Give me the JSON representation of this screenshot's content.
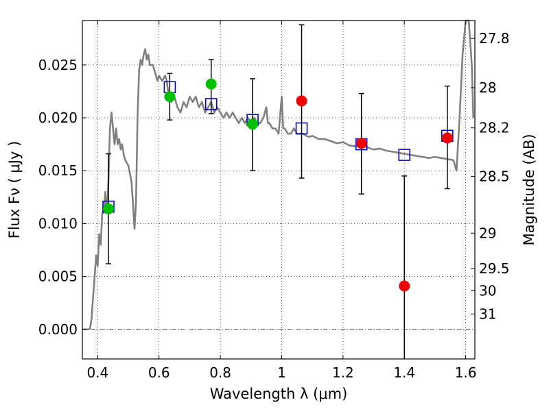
{
  "chart_data": {
    "type": "scatter",
    "xlabel": "Wavelength  λ (μm)",
    "ylabel": "Flux  Fν  ( μJy )",
    "ylabel_right": "Magnitude (AB)",
    "xlim": [
      0.35,
      1.63
    ],
    "ylim": [
      -0.0028,
      0.0292
    ],
    "grid": true,
    "legend": "none",
    "x_ticks": [
      {
        "value": 0.4,
        "label": "0.4"
      },
      {
        "value": 0.6,
        "label": "0.6"
      },
      {
        "value": 0.8,
        "label": "0.8"
      },
      {
        "value": 1.0,
        "label": "1"
      },
      {
        "value": 1.2,
        "label": "1.2"
      },
      {
        "value": 1.4,
        "label": "1.4"
      },
      {
        "value": 1.6,
        "label": "1.6"
      }
    ],
    "y_ticks": [
      {
        "value": 0.0,
        "label": "0.000"
      },
      {
        "value": 0.005,
        "label": "0.005"
      },
      {
        "value": 0.01,
        "label": "0.010"
      },
      {
        "value": 0.015,
        "label": "0.015"
      },
      {
        "value": 0.02,
        "label": "0.020"
      },
      {
        "value": 0.025,
        "label": "0.025"
      }
    ],
    "magnitude_ticks": [
      {
        "label": "27.8",
        "flux": 0.0275
      },
      {
        "label": "28",
        "flux": 0.02285
      },
      {
        "label": "28.2",
        "flux": 0.01905
      },
      {
        "label": "28.5",
        "flux": 0.01445
      },
      {
        "label": "29",
        "flux": 0.0091
      },
      {
        "label": "29.5",
        "flux": 0.00575
      },
      {
        "label": "30",
        "flux": 0.00365
      },
      {
        "label": "31",
        "flux": 0.00145
      }
    ],
    "model_spectrum": {
      "color": "#808080",
      "points": [
        [
          0.35,
          0.0
        ],
        [
          0.37,
          0.0
        ],
        [
          0.375,
          0.0001
        ],
        [
          0.38,
          0.001
        ],
        [
          0.385,
          0.003
        ],
        [
          0.39,
          0.005
        ],
        [
          0.395,
          0.007
        ],
        [
          0.4,
          0.006
        ],
        [
          0.405,
          0.009
        ],
        [
          0.41,
          0.008
        ],
        [
          0.415,
          0.011
        ],
        [
          0.42,
          0.011
        ],
        [
          0.425,
          0.013
        ],
        [
          0.43,
          0.011
        ],
        [
          0.435,
          0.014
        ],
        [
          0.44,
          0.019
        ],
        [
          0.445,
          0.0205
        ],
        [
          0.45,
          0.019
        ],
        [
          0.455,
          0.0175
        ],
        [
          0.46,
          0.019
        ],
        [
          0.465,
          0.0175
        ],
        [
          0.47,
          0.018
        ],
        [
          0.475,
          0.017
        ],
        [
          0.48,
          0.0175
        ],
        [
          0.485,
          0.0165
        ],
        [
          0.49,
          0.016
        ],
        [
          0.5,
          0.0155
        ],
        [
          0.51,
          0.014
        ],
        [
          0.515,
          0.012
        ],
        [
          0.52,
          0.0095
        ],
        [
          0.525,
          0.012
        ],
        [
          0.53,
          0.02
        ],
        [
          0.535,
          0.0245
        ],
        [
          0.54,
          0.0255
        ],
        [
          0.545,
          0.025
        ],
        [
          0.55,
          0.026
        ],
        [
          0.555,
          0.0265
        ],
        [
          0.56,
          0.0255
        ],
        [
          0.565,
          0.026
        ],
        [
          0.57,
          0.025
        ],
        [
          0.58,
          0.025
        ],
        [
          0.585,
          0.0245
        ],
        [
          0.59,
          0.024
        ],
        [
          0.595,
          0.0235
        ],
        [
          0.6,
          0.024
        ],
        [
          0.61,
          0.0235
        ],
        [
          0.62,
          0.024
        ],
        [
          0.625,
          0.0235
        ],
        [
          0.63,
          0.0225
        ],
        [
          0.64,
          0.0215
        ],
        [
          0.65,
          0.022
        ],
        [
          0.66,
          0.021
        ],
        [
          0.67,
          0.0205
        ],
        [
          0.68,
          0.0215
        ],
        [
          0.69,
          0.021
        ],
        [
          0.7,
          0.022
        ],
        [
          0.71,
          0.0215
        ],
        [
          0.72,
          0.022
        ],
        [
          0.73,
          0.021
        ],
        [
          0.74,
          0.0215
        ],
        [
          0.75,
          0.0205
        ],
        [
          0.76,
          0.021
        ],
        [
          0.77,
          0.0215
        ],
        [
          0.78,
          0.0205
        ],
        [
          0.79,
          0.021
        ],
        [
          0.8,
          0.0205
        ],
        [
          0.81,
          0.02
        ],
        [
          0.82,
          0.0205
        ],
        [
          0.83,
          0.02
        ],
        [
          0.84,
          0.0205
        ],
        [
          0.85,
          0.02
        ],
        [
          0.86,
          0.0195
        ],
        [
          0.87,
          0.02
        ],
        [
          0.88,
          0.0195
        ],
        [
          0.89,
          0.02
        ],
        [
          0.9,
          0.0195
        ],
        [
          0.91,
          0.02
        ],
        [
          0.92,
          0.0195
        ],
        [
          0.93,
          0.0195
        ],
        [
          0.94,
          0.02
        ],
        [
          0.95,
          0.021
        ],
        [
          0.955,
          0.0195
        ],
        [
          0.96,
          0.0195
        ],
        [
          0.97,
          0.019
        ],
        [
          0.98,
          0.019
        ],
        [
          0.99,
          0.0185
        ],
        [
          1.0,
          0.022
        ],
        [
          1.005,
          0.019
        ],
        [
          1.01,
          0.019
        ],
        [
          1.02,
          0.0185
        ],
        [
          1.03,
          0.0185
        ],
        [
          1.04,
          0.019
        ],
        [
          1.05,
          0.0185
        ],
        [
          1.06,
          0.0185
        ],
        [
          1.07,
          0.0185
        ],
        [
          1.08,
          0.0183
        ],
        [
          1.09,
          0.0182
        ],
        [
          1.1,
          0.0183
        ],
        [
          1.12,
          0.018
        ],
        [
          1.14,
          0.018
        ],
        [
          1.16,
          0.0178
        ],
        [
          1.18,
          0.0176
        ],
        [
          1.2,
          0.0177
        ],
        [
          1.22,
          0.0174
        ],
        [
          1.24,
          0.0173
        ],
        [
          1.26,
          0.0174
        ],
        [
          1.28,
          0.0172
        ],
        [
          1.3,
          0.017
        ],
        [
          1.32,
          0.0171
        ],
        [
          1.34,
          0.0169
        ],
        [
          1.36,
          0.0168
        ],
        [
          1.38,
          0.0167
        ],
        [
          1.4,
          0.0166
        ],
        [
          1.42,
          0.0165
        ],
        [
          1.44,
          0.0164
        ],
        [
          1.46,
          0.0163
        ],
        [
          1.48,
          0.0162
        ],
        [
          1.5,
          0.0163
        ],
        [
          1.52,
          0.0162
        ],
        [
          1.54,
          0.0161
        ],
        [
          1.56,
          0.016
        ],
        [
          1.57,
          0.015
        ],
        [
          1.58,
          0.02
        ],
        [
          1.59,
          0.026
        ],
        [
          1.6,
          0.03
        ],
        [
          1.61,
          0.03
        ],
        [
          1.62,
          0.025
        ],
        [
          1.625,
          0.02
        ]
      ]
    },
    "model_photometry": {
      "color": "#0000cc",
      "marker": "open-square",
      "points": [
        {
          "x": 0.435,
          "y": 0.0116
        },
        {
          "x": 0.635,
          "y": 0.0229
        },
        {
          "x": 0.77,
          "y": 0.0213
        },
        {
          "x": 0.905,
          "y": 0.0198
        },
        {
          "x": 1.065,
          "y": 0.019
        },
        {
          "x": 1.26,
          "y": 0.0175
        },
        {
          "x": 1.4,
          "y": 0.0165
        },
        {
          "x": 1.54,
          "y": 0.0183
        }
      ]
    },
    "series": [
      {
        "color": "#00c000",
        "marker": "filled-circle",
        "points": [
          {
            "x": 0.435,
            "y": 0.0114,
            "yerr_low": 0.0062,
            "yerr_high": 0.0166
          },
          {
            "x": 0.635,
            "y": 0.022,
            "yerr_low": 0.0198,
            "yerr_high": 0.0242
          },
          {
            "x": 0.77,
            "y": 0.0232,
            "yerr_low": 0.0204,
            "yerr_high": 0.0255
          },
          {
            "x": 0.905,
            "y": 0.0194,
            "yerr_low": 0.015,
            "yerr_high": 0.0237
          }
        ]
      },
      {
        "color": "#ee0000",
        "marker": "filled-circle",
        "points": [
          {
            "x": 1.065,
            "y": 0.0216,
            "yerr_low": 0.0143,
            "yerr_high": 0.0288
          },
          {
            "x": 1.26,
            "y": 0.0176,
            "yerr_low": 0.0128,
            "yerr_high": 0.0223
          },
          {
            "x": 1.4,
            "y": 0.0041,
            "yerr_low": -0.0028,
            "yerr_high": 0.0145
          },
          {
            "x": 1.54,
            "y": 0.0181,
            "yerr_low": 0.0133,
            "yerr_high": 0.023
          }
        ]
      }
    ]
  }
}
